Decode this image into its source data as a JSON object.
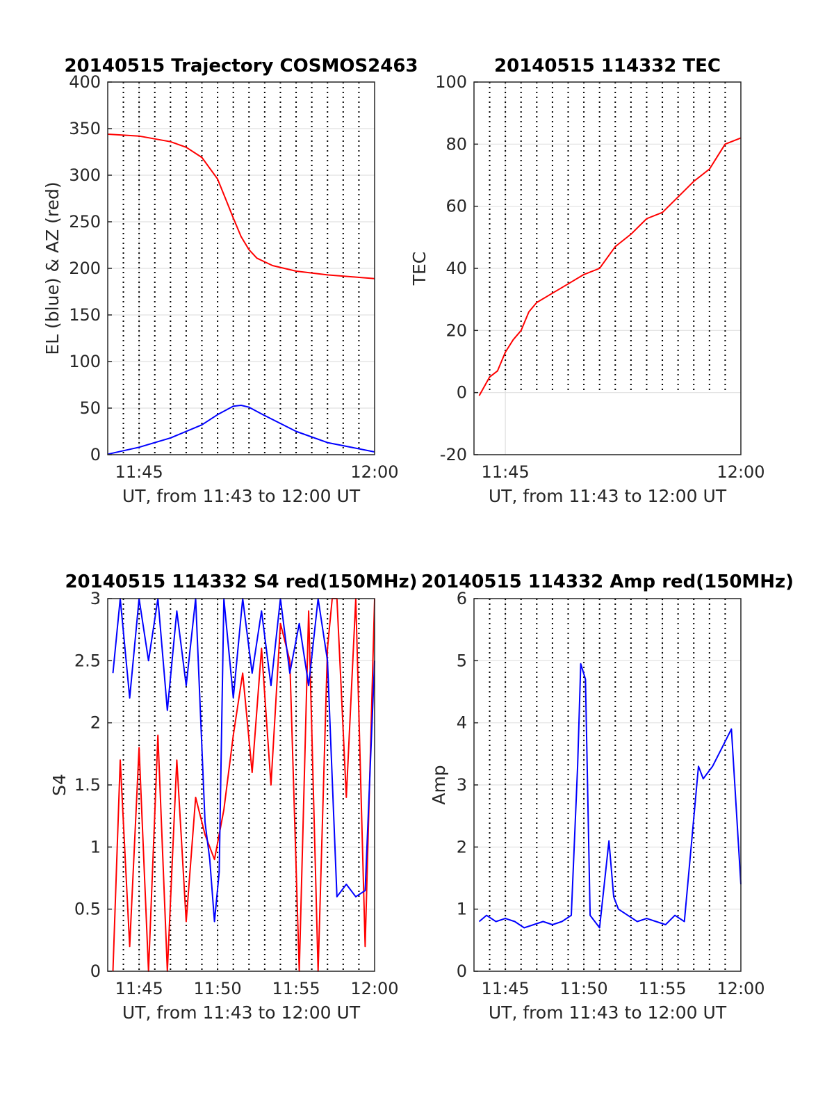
{
  "colors": {
    "red": "#ff0000",
    "blue": "#0000ff",
    "grid_solid": "#e0e0e0",
    "grid_dotted": "#000000",
    "axes": "#262626"
  },
  "chart_data": [
    {
      "id": "trajectory",
      "type": "line",
      "title": "20140515 Trajectory COSMOS2463",
      "xlabel": "UT, from 11:43 to 12:00 UT",
      "ylabel": "EL (blue) & AZ (red)",
      "xlim": [
        11.7167,
        12.0
      ],
      "ylim": [
        0,
        400
      ],
      "yticks": [
        0,
        50,
        100,
        150,
        200,
        250,
        300,
        350,
        400
      ],
      "xticks": [
        {
          "t": 11.75,
          "label": "11:45"
        },
        {
          "t": 12.0,
          "label": "12:00"
        }
      ],
      "grid": true,
      "minute_lines": true,
      "series": [
        {
          "color": "red",
          "x": [
            11.7167,
            11.75,
            11.7833,
            11.8,
            11.8167,
            11.8333,
            11.8417,
            11.85,
            11.8583,
            11.8667,
            11.875,
            11.8917,
            11.9167,
            11.95,
            12.0
          ],
          "y": [
            344,
            342,
            336,
            330,
            319,
            296,
            275,
            254,
            234,
            220,
            211,
            203,
            197,
            193,
            189
          ]
        },
        {
          "color": "blue",
          "x": [
            11.7167,
            11.75,
            11.7833,
            11.8167,
            11.8333,
            11.85,
            11.8583,
            11.8667,
            11.8833,
            11.9167,
            11.95,
            12.0
          ],
          "y": [
            0.5,
            8,
            18,
            32,
            43,
            52,
            53,
            51,
            42,
            25,
            13,
            3
          ]
        }
      ]
    },
    {
      "id": "tec",
      "type": "line",
      "title": "20140515 114332 TEC",
      "xlabel": "UT, from 11:43 to 12:00 UT",
      "ylabel": "TEC",
      "xlim": [
        11.7167,
        12.0
      ],
      "ylim": [
        -20,
        100
      ],
      "yticks": [
        -20,
        0,
        20,
        40,
        60,
        80,
        100
      ],
      "xticks": [
        {
          "t": 11.75,
          "label": "11:45"
        },
        {
          "t": 12.0,
          "label": "12:00"
        }
      ],
      "grid": true,
      "minute_lines": true,
      "minute_line_bottom": 0,
      "series": [
        {
          "color": "red",
          "x": [
            11.7222,
            11.7333,
            11.7417,
            11.75,
            11.7583,
            11.7667,
            11.775,
            11.7833,
            11.8,
            11.8167,
            11.8333,
            11.85,
            11.8667,
            11.8833,
            11.9,
            11.9167,
            11.9333,
            11.95,
            11.9667,
            11.975,
            11.9833,
            12.0
          ],
          "y": [
            -1,
            5,
            7,
            13,
            17,
            20,
            26,
            29,
            32,
            35,
            38,
            40,
            47,
            51,
            56,
            58,
            63,
            68,
            72,
            76,
            80,
            82
          ]
        }
      ]
    },
    {
      "id": "s4",
      "type": "line",
      "title": "20140515 114332 S4 red(150MHz)",
      "xlabel": "UT, from 11:43 to 12:00 UT",
      "ylabel": "S4",
      "xlim": [
        11.7167,
        12.0
      ],
      "ylim": [
        0,
        3
      ],
      "yticks": [
        0,
        0.5,
        1,
        1.5,
        2,
        2.5,
        3
      ],
      "xticks": [
        {
          "t": 11.75,
          "label": "11:45"
        },
        {
          "t": 11.8333,
          "label": "11:50"
        },
        {
          "t": 11.9167,
          "label": "11:55"
        },
        {
          "t": 12.0,
          "label": "12:00"
        }
      ],
      "grid": true,
      "minute_lines": true,
      "series": [
        {
          "color": "red",
          "x": [
            11.7222,
            11.73,
            11.74,
            11.75,
            11.76,
            11.77,
            11.78,
            11.79,
            11.8,
            11.81,
            11.82,
            11.83,
            11.84,
            11.85,
            11.86,
            11.87,
            11.88,
            11.89,
            11.9,
            11.91,
            11.92,
            11.93,
            11.94,
            11.95,
            11.955,
            11.96,
            11.97,
            11.98,
            11.99,
            12.0
          ],
          "y": [
            0,
            1.7,
            0.2,
            1.8,
            0,
            1.9,
            0,
            1.7,
            0.4,
            1.4,
            1.1,
            0.9,
            1.3,
            1.9,
            2.4,
            1.6,
            2.6,
            1.5,
            2.8,
            2.5,
            0,
            2.9,
            0,
            2.6,
            3,
            3,
            1.4,
            3,
            0.2,
            3
          ]
        },
        {
          "color": "blue",
          "x": [
            11.7222,
            11.73,
            11.74,
            11.75,
            11.76,
            11.77,
            11.78,
            11.79,
            11.8,
            11.81,
            11.82,
            11.825,
            11.83,
            11.835,
            11.84,
            11.85,
            11.86,
            11.87,
            11.88,
            11.89,
            11.9,
            11.91,
            11.92,
            11.93,
            11.94,
            11.95,
            11.96,
            11.97,
            11.98,
            11.99,
            12.0
          ],
          "y": [
            2.4,
            3,
            2.2,
            3,
            2.5,
            3,
            2.1,
            2.9,
            2.3,
            3,
            1.2,
            0.9,
            0.4,
            0.8,
            3,
            2.2,
            3,
            2.4,
            2.9,
            2.3,
            3,
            2.4,
            2.8,
            2.3,
            3,
            2.5,
            0.6,
            0.7,
            0.6,
            0.65,
            2.5
          ]
        }
      ]
    },
    {
      "id": "amp",
      "type": "line",
      "title": "20140515 114332 Amp red(150MHz)",
      "xlabel": "UT, from 11:43 to 12:00 UT",
      "ylabel": "Amp",
      "xlim": [
        11.7167,
        12.0
      ],
      "ylim": [
        0,
        6
      ],
      "yticks": [
        0,
        1,
        2,
        3,
        4,
        5,
        6
      ],
      "xticks": [
        {
          "t": 11.75,
          "label": "11:45"
        },
        {
          "t": 11.8333,
          "label": "11:50"
        },
        {
          "t": 11.9167,
          "label": "11:55"
        },
        {
          "t": 12.0,
          "label": "12:00"
        }
      ],
      "grid": true,
      "minute_lines": true,
      "series": [
        {
          "color": "blue",
          "x": [
            11.7222,
            11.73,
            11.74,
            11.75,
            11.76,
            11.77,
            11.78,
            11.79,
            11.8,
            11.81,
            11.82,
            11.8267,
            11.83,
            11.835,
            11.84,
            11.845,
            11.85,
            11.86,
            11.865,
            11.87,
            11.88,
            11.89,
            11.9,
            11.91,
            11.92,
            11.93,
            11.94,
            11.955,
            11.96,
            11.97,
            11.98,
            11.99,
            12.0
          ],
          "y": [
            0.8,
            0.9,
            0.8,
            0.85,
            0.8,
            0.7,
            0.75,
            0.8,
            0.75,
            0.8,
            0.9,
            3.3,
            4.95,
            4.7,
            0.9,
            0.8,
            0.7,
            2.1,
            1.2,
            1.0,
            0.9,
            0.8,
            0.85,
            0.8,
            0.75,
            0.9,
            0.8,
            3.3,
            3.1,
            3.3,
            3.6,
            3.9,
            1.4
          ]
        }
      ]
    }
  ]
}
